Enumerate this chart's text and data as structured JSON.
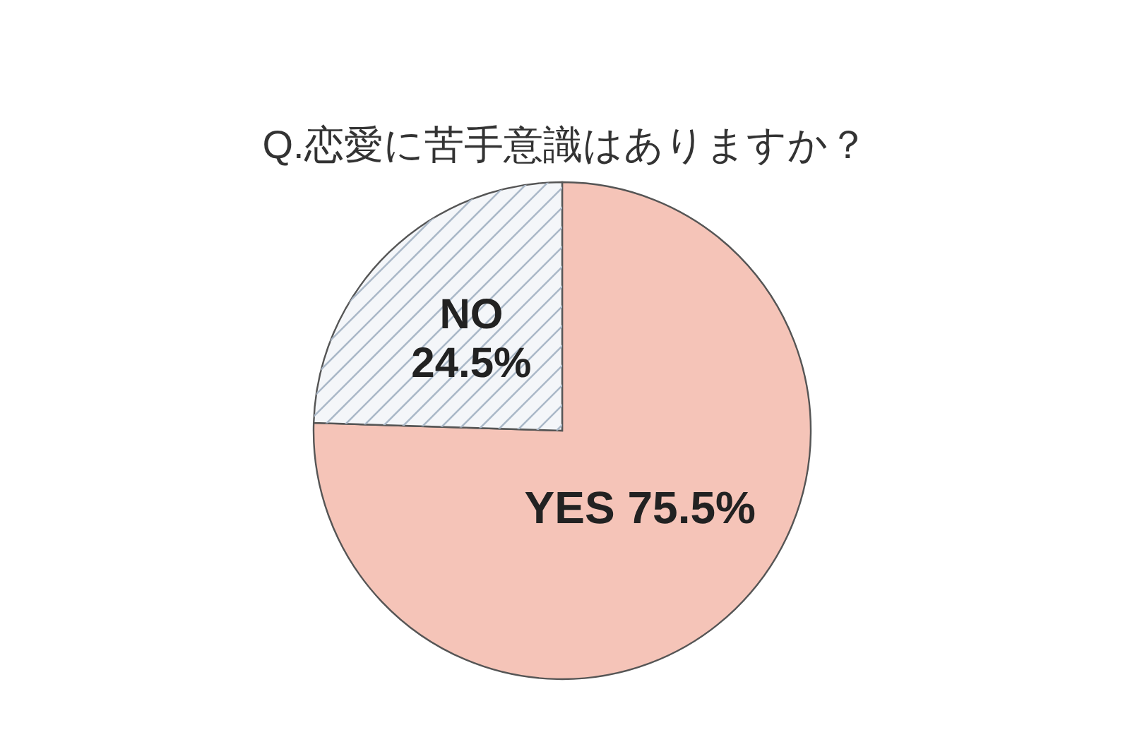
{
  "chart_data": {
    "type": "pie",
    "title": "Q.恋愛に苦手意識はありますか？",
    "categories": [
      "YES",
      "NO"
    ],
    "values": [
      75.5,
      24.5
    ],
    "value_labels": [
      "75.5%",
      "24.5%"
    ],
    "colors": [
      "#f5c4b8",
      "#f4f6f9"
    ],
    "legend": false
  }
}
